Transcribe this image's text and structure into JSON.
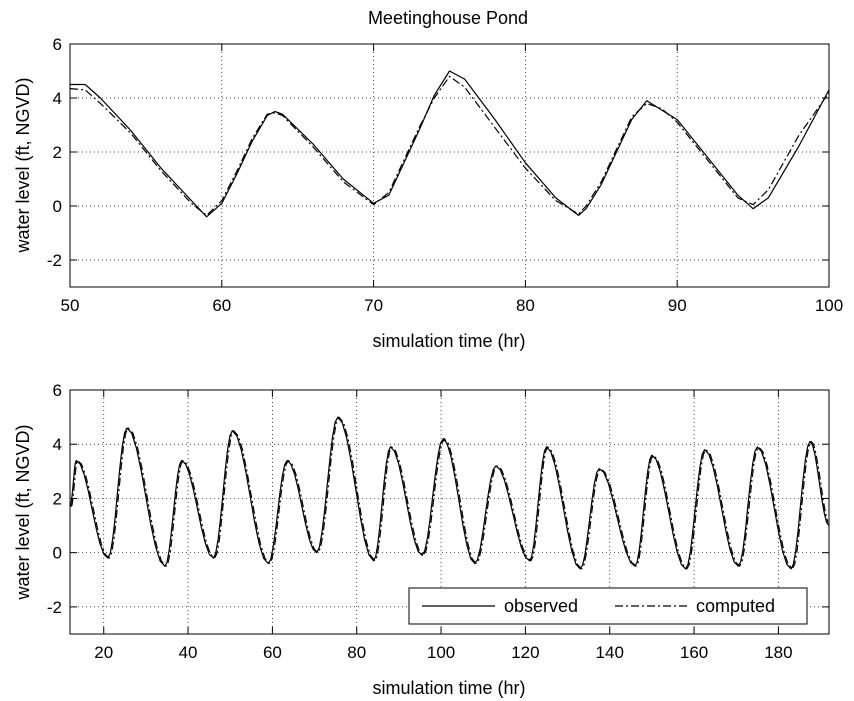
{
  "figure": {
    "title": "Meetinghouse Pond",
    "background": "#ffffff",
    "line_color": "#000000",
    "grid_color": "#000000"
  },
  "chart_data": [
    {
      "type": "line",
      "title": "Meetinghouse Pond",
      "xlabel": "simulation time (hr)",
      "ylabel": "water level (ft, NGVD)",
      "xlim": [
        50,
        100
      ],
      "ylim": [
        -3,
        6
      ],
      "xticks": [
        50,
        60,
        70,
        80,
        90,
        100
      ],
      "yticks": [
        -2,
        0,
        2,
        4,
        6
      ],
      "grid": true,
      "legend": null,
      "series": [
        {
          "name": "observed",
          "style": "solid",
          "x": [
            50,
            51,
            52,
            54,
            56,
            58,
            59,
            60,
            61,
            62,
            63,
            63.5,
            64,
            66,
            68,
            70,
            71,
            72,
            73,
            74,
            75,
            76,
            78,
            80,
            82,
            83.5,
            84,
            85,
            86,
            87,
            88,
            89,
            90,
            92,
            94,
            95,
            96,
            98,
            100
          ],
          "y": [
            4.5,
            4.5,
            4.0,
            2.8,
            1.4,
            0.2,
            -0.4,
            0.1,
            1.2,
            2.4,
            3.35,
            3.5,
            3.4,
            2.3,
            1.0,
            0.1,
            0.4,
            1.6,
            2.8,
            4.1,
            5.0,
            4.7,
            3.2,
            1.6,
            0.3,
            -0.35,
            -0.1,
            0.8,
            2.0,
            3.2,
            3.9,
            3.55,
            3.2,
            1.8,
            0.4,
            -0.1,
            0.3,
            2.2,
            4.3
          ]
        },
        {
          "name": "computed",
          "style": "dashdot",
          "x": [
            50,
            51,
            52,
            54,
            56,
            58,
            59,
            60,
            61,
            62,
            63,
            63.5,
            64,
            66,
            68,
            70,
            71,
            72,
            73,
            74,
            75,
            76,
            78,
            80,
            82,
            83.5,
            84,
            85,
            86,
            87,
            88,
            89,
            90,
            92,
            94,
            95,
            96,
            98,
            100
          ],
          "y": [
            4.35,
            4.3,
            3.8,
            2.7,
            1.3,
            0.1,
            -0.35,
            0.2,
            1.3,
            2.5,
            3.4,
            3.45,
            3.35,
            2.2,
            0.9,
            0.05,
            0.5,
            1.7,
            2.9,
            4.0,
            4.8,
            4.4,
            2.9,
            1.4,
            0.2,
            -0.3,
            0.0,
            0.9,
            2.1,
            3.3,
            3.8,
            3.6,
            3.1,
            1.7,
            0.3,
            0.05,
            0.6,
            2.6,
            4.2
          ]
        }
      ]
    },
    {
      "type": "line",
      "title": "",
      "xlabel": "simulation time (hr)",
      "ylabel": "water level (ft, NGVD)",
      "xlim": [
        12,
        192
      ],
      "ylim": [
        -3,
        6
      ],
      "xticks": [
        20,
        40,
        60,
        80,
        100,
        120,
        140,
        160,
        180
      ],
      "yticks": [
        -2,
        0,
        2,
        4,
        6
      ],
      "grid": true,
      "legend": "bottom-right",
      "peaks": [
        [
          13.5,
          3.4
        ],
        [
          25.5,
          4.6
        ],
        [
          38.5,
          3.4
        ],
        [
          50.5,
          4.5
        ],
        [
          63.5,
          3.4
        ],
        [
          75.5,
          5.0
        ],
        [
          88,
          3.9
        ],
        [
          100.5,
          4.2
        ],
        [
          113,
          3.2
        ],
        [
          125,
          3.9
        ],
        [
          137.5,
          3.1
        ],
        [
          150,
          3.6
        ],
        [
          162.5,
          3.8
        ],
        [
          175,
          3.9
        ],
        [
          187.5,
          4.1
        ]
      ],
      "troughs": [
        [
          21,
          -0.2
        ],
        [
          34.5,
          -0.5
        ],
        [
          46,
          -0.2
        ],
        [
          59,
          -0.4
        ],
        [
          70.5,
          0.0
        ],
        [
          84,
          -0.3
        ],
        [
          95.5,
          -0.1
        ],
        [
          108,
          -0.4
        ],
        [
          121,
          -0.3
        ],
        [
          133,
          -0.6
        ],
        [
          146,
          -0.5
        ],
        [
          158,
          -0.6
        ],
        [
          170.5,
          -0.5
        ],
        [
          183,
          -0.6
        ]
      ],
      "start": [
        12,
        1.7
      ],
      "end": [
        192,
        1.0
      ],
      "series": [
        {
          "name": "observed",
          "style": "solid"
        },
        {
          "name": "computed",
          "style": "dashdot"
        }
      ]
    }
  ]
}
